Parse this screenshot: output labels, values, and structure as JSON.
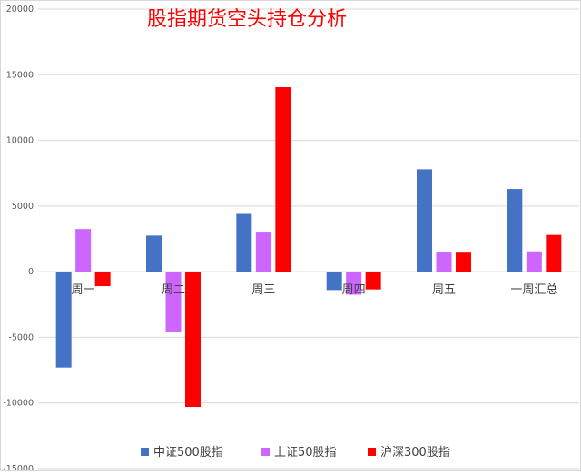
{
  "chart_data": {
    "type": "bar",
    "title": "股指期货空头持仓分析",
    "categories": [
      "周一",
      "周二",
      "周三",
      "周四",
      "周五",
      "一周汇总"
    ],
    "series": [
      {
        "name": "中证500股指",
        "color": "#4472c4",
        "values": [
          -7300,
          2750,
          4400,
          -1400,
          7800,
          6300
        ]
      },
      {
        "name": "上证50股指",
        "color": "#cc66ff",
        "values": [
          3250,
          -4600,
          3050,
          -1750,
          1500,
          1550
        ]
      },
      {
        "name": "沪深300股指",
        "color": "#ff0000",
        "values": [
          -1100,
          -10300,
          14050,
          -1350,
          1450,
          2800
        ]
      }
    ],
    "ylim": [
      -15000,
      20000
    ],
    "yticks": [
      20000,
      15000,
      10000,
      5000,
      0,
      -5000,
      -10000,
      -15000
    ],
    "ytick_labels": [
      "20000",
      "15000",
      "10000",
      "5000",
      "0",
      "-5000",
      "-10000",
      "-15000"
    ],
    "grid": true,
    "legend_position": "bottom",
    "title_color": "#ff0000"
  }
}
